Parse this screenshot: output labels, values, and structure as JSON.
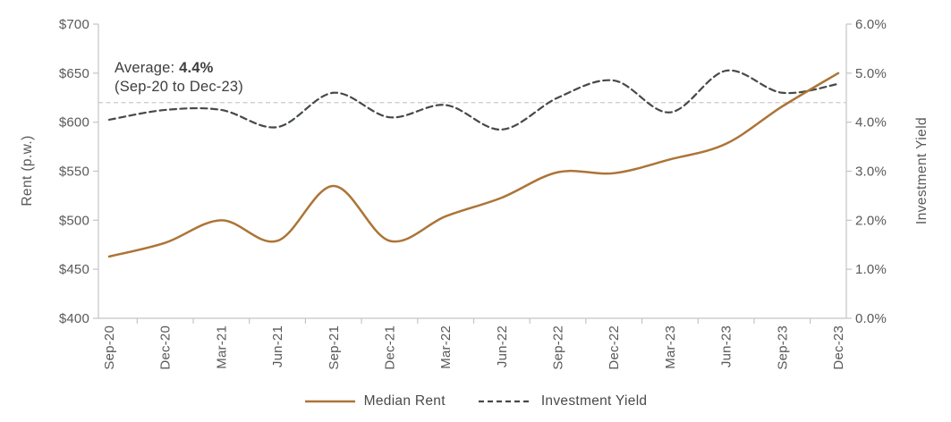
{
  "chart_data": {
    "type": "line",
    "title": "",
    "x_categories": [
      "Sep-20",
      "Dec-20",
      "Mar-21",
      "Jun-21",
      "Sep-21",
      "Dec-21",
      "Mar-22",
      "Jun-22",
      "Sep-22",
      "Dec-22",
      "Mar-23",
      "Jun-23",
      "Sep-23",
      "Dec-23"
    ],
    "series": [
      {
        "name": "Median Rent",
        "axis": "left",
        "line_style": "solid",
        "color": "#AC7436",
        "values": [
          463,
          477,
          500,
          479,
          535,
          479,
          504,
          523,
          549,
          548,
          562,
          578,
          616,
          650
        ]
      },
      {
        "name": "Investment Yield",
        "axis": "right",
        "line_style": "dashed",
        "color": "#45494A",
        "values": [
          4.05,
          4.25,
          4.25,
          3.9,
          4.6,
          4.1,
          4.35,
          3.85,
          4.5,
          4.85,
          4.2,
          5.05,
          4.6,
          4.78
        ]
      }
    ],
    "left_axis": {
      "title": "Rent (p.w.)",
      "min": 400,
      "max": 700,
      "step": 50,
      "ticks": [
        "$400",
        "$450",
        "$500",
        "$550",
        "$600",
        "$650",
        "$700"
      ]
    },
    "right_axis": {
      "title": "Investment Yield",
      "min": 0,
      "max": 6,
      "step": 1,
      "ticks": [
        "0.0%",
        "1.0%",
        "2.0%",
        "3.0%",
        "4.0%",
        "5.0%",
        "6.0%"
      ]
    },
    "average_line": {
      "value": 4.4,
      "axis": "right"
    },
    "annotation": {
      "label": "Average: ",
      "value": "4.4%",
      "subtitle": "(Sep-20 to Dec-23)"
    },
    "grid": "off",
    "legend_position": "bottom",
    "colors": {
      "rent_line": "#AC7436",
      "yield_line": "#45494A",
      "average_line": "#CACACA",
      "axis_line": "#C4C4C4",
      "tick_label": "#595959",
      "annotation_text": "#3E3E3E"
    }
  }
}
